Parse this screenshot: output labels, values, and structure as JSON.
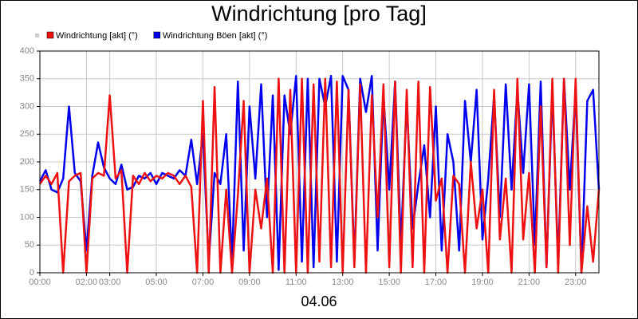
{
  "chart_data": {
    "type": "line",
    "title": "Windrichtung [pro Tag]",
    "xlabel": "04.06",
    "x": [
      0,
      0.25,
      0.5,
      0.75,
      1,
      1.25,
      1.5,
      1.75,
      2,
      2.25,
      2.5,
      2.75,
      3,
      3.25,
      3.5,
      3.75,
      4,
      4.25,
      4.5,
      4.75,
      5,
      5.25,
      5.5,
      5.75,
      6,
      6.25,
      6.5,
      6.75,
      7,
      7.25,
      7.5,
      7.75,
      8,
      8.25,
      8.5,
      8.75,
      9,
      9.25,
      9.5,
      9.75,
      10,
      10.25,
      10.5,
      10.75,
      11,
      11.25,
      11.5,
      11.75,
      12,
      12.25,
      12.5,
      12.75,
      13,
      13.25,
      13.5,
      13.75,
      14,
      14.25,
      14.5,
      14.75,
      15,
      15.25,
      15.5,
      15.75,
      16,
      16.25,
      16.5,
      16.75,
      17,
      17.25,
      17.5,
      17.75,
      18,
      18.25,
      18.5,
      18.75,
      19,
      19.25,
      19.5,
      19.75,
      20,
      20.25,
      20.5,
      20.75,
      21,
      21.25,
      21.5,
      21.75,
      22,
      22.25,
      22.5,
      22.75,
      23,
      23.25,
      23.5,
      23.75,
      24
    ],
    "series": [
      {
        "name": "Windrichtung [akt] (°)",
        "color": "#ee1111",
        "values": [
          160,
          175,
          160,
          180,
          0,
          165,
          175,
          180,
          0,
          170,
          180,
          175,
          320,
          170,
          185,
          0,
          175,
          160,
          180,
          165,
          175,
          170,
          180,
          175,
          160,
          175,
          155,
          0,
          310,
          0,
          335,
          0,
          150,
          0,
          140,
          310,
          0,
          150,
          80,
          170,
          0,
          350,
          0,
          330,
          0,
          350,
          0,
          340,
          20,
          350,
          10,
          345,
          0,
          330,
          10,
          340,
          0,
          320,
          100,
          340,
          10,
          345,
          0,
          330,
          10,
          345,
          0,
          335,
          130,
          170,
          0,
          175,
          160,
          0,
          200,
          80,
          150,
          0,
          330,
          60,
          170,
          0,
          350,
          60,
          180,
          0,
          300,
          10,
          350,
          0,
          350,
          50,
          350,
          0,
          120,
          20,
          150
        ]
      },
      {
        "name": "Windrichtung Böen [akt] (°)",
        "color": "#0000ee",
        "values": [
          165,
          185,
          150,
          145,
          170,
          300,
          180,
          165,
          40,
          175,
          235,
          190,
          170,
          160,
          195,
          150,
          155,
          175,
          170,
          180,
          160,
          180,
          175,
          170,
          185,
          175,
          240,
          160,
          250,
          20,
          180,
          160,
          250,
          20,
          345,
          40,
          300,
          170,
          340,
          100,
          320,
          5,
          320,
          250,
          355,
          20,
          350,
          10,
          350,
          300,
          355,
          20,
          355,
          330,
          20,
          350,
          290,
          355,
          40,
          320,
          150,
          345,
          50,
          310,
          80,
          160,
          230,
          100,
          300,
          40,
          250,
          200,
          40,
          310,
          200,
          330,
          60,
          170,
          320,
          100,
          340,
          150,
          330,
          180,
          340,
          50,
          345,
          10,
          330,
          20,
          350,
          150,
          330,
          0,
          310,
          330,
          150
        ]
      }
    ],
    "xlim": [
      0,
      24
    ],
    "xticks": [
      {
        "value": 0,
        "label": "00:00"
      },
      {
        "value": 2,
        "label": "02:00"
      },
      {
        "value": 3,
        "label": "03:00"
      },
      {
        "value": 5,
        "label": "05:00"
      },
      {
        "value": 7,
        "label": "07:00"
      },
      {
        "value": 9,
        "label": "09:00"
      },
      {
        "value": 11,
        "label": "11:00"
      },
      {
        "value": 13,
        "label": "13:00"
      },
      {
        "value": 15,
        "label": "15:00"
      },
      {
        "value": 17,
        "label": "17:00"
      },
      {
        "value": 19,
        "label": "19:00"
      },
      {
        "value": 21,
        "label": "21:00"
      },
      {
        "value": 23,
        "label": "23:00"
      }
    ],
    "ylim": [
      0,
      400
    ],
    "yticks": [
      0,
      50,
      100,
      150,
      200,
      250,
      300,
      350,
      400
    ],
    "grid": true
  }
}
